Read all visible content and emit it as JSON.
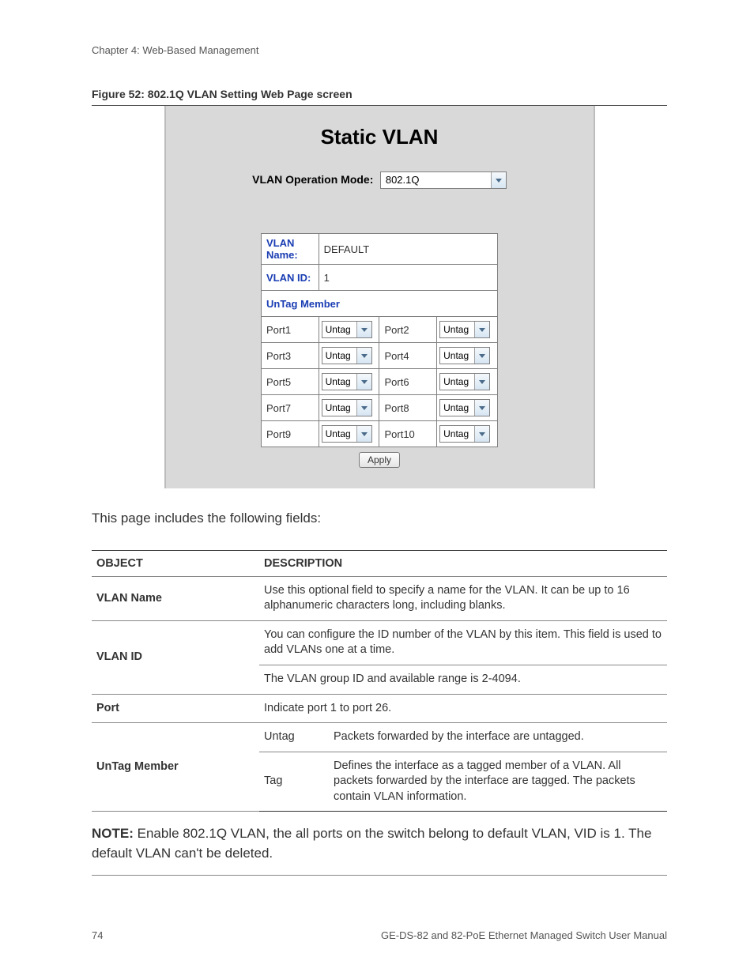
{
  "chapter_header": "Chapter 4: Web-Based Management",
  "figure_caption": "Figure 52:  802.1Q VLAN Setting Web Page screen",
  "screenshot": {
    "title": "Static VLAN",
    "op_mode_label": "VLAN Operation Mode:",
    "op_mode_value": "802.1Q",
    "vlan_name_label": "VLAN Name:",
    "vlan_name_value": "DEFAULT",
    "vlan_id_label": "VLAN ID:",
    "vlan_id_value": "1",
    "untag_header": "UnTag Member",
    "ports": [
      {
        "a_label": "Port1",
        "a_val": "Untag",
        "b_label": "Port2",
        "b_val": "Untag"
      },
      {
        "a_label": "Port3",
        "a_val": "Untag",
        "b_label": "Port4",
        "b_val": "Untag"
      },
      {
        "a_label": "Port5",
        "a_val": "Untag",
        "b_label": "Port6",
        "b_val": "Untag"
      },
      {
        "a_label": "Port7",
        "a_val": "Untag",
        "b_label": "Port8",
        "b_val": "Untag"
      },
      {
        "a_label": "Port9",
        "a_val": "Untag",
        "b_label": "Port10",
        "b_val": "Untag"
      }
    ],
    "apply_label": "Apply"
  },
  "intro_text": "This page includes the following fields:",
  "desc_table": {
    "col_object": "OBJECT",
    "col_description": "DESCRIPTION",
    "rows": {
      "vlan_name": {
        "obj": "VLAN Name",
        "desc": "Use this optional field to specify a name for the VLAN. It can be up to 16 alphanumeric characters long, including blanks."
      },
      "vlan_id": {
        "obj": "VLAN ID",
        "desc1": "You can configure the ID number of the VLAN by this item. This field is used to add VLANs one at a time.",
        "desc2": "The VLAN group ID and available range is 2-4094."
      },
      "port": {
        "obj": "Port",
        "desc": "Indicate port 1 to port 26."
      },
      "untag_member": {
        "obj": "UnTag Member",
        "untag_label": "Untag",
        "untag_desc": "Packets forwarded by the interface are untagged.",
        "tag_label": "Tag",
        "tag_desc": "Defines the interface as a tagged member of a VLAN. All packets forwarded by the interface are tagged. The packets contain VLAN information."
      }
    }
  },
  "note": {
    "label": "NOTE:",
    "text": " Enable 802.1Q VLAN, the all ports on the switch belong to default VLAN, VID is 1. The default VLAN can't be deleted."
  },
  "footer": {
    "page_num": "74",
    "doc_title": "GE-DS-82 and 82-PoE Ethernet Managed Switch User Manual"
  }
}
